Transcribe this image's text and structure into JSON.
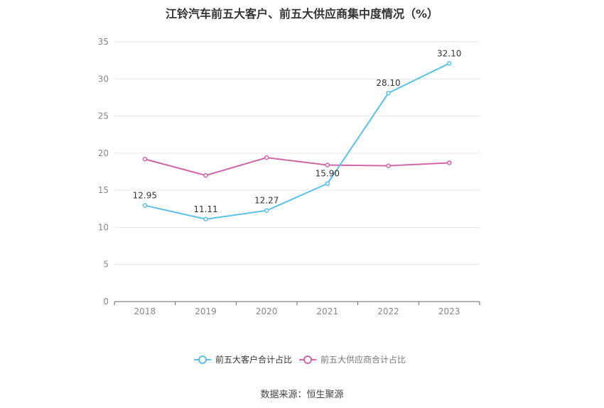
{
  "chart_data": {
    "type": "line",
    "title": "江铃汽车前五大客户、前五大供应商集中度情况（%）",
    "categories": [
      "2018",
      "2019",
      "2020",
      "2021",
      "2022",
      "2023"
    ],
    "ylim": [
      0,
      35
    ],
    "yticks": [
      0,
      5,
      10,
      15,
      20,
      25,
      30,
      35
    ],
    "grid": true,
    "legend_position": "bottom",
    "series": [
      {
        "name": "前五大客户合计占比",
        "color": "#5bc0eb",
        "values": [
          12.95,
          11.11,
          12.27,
          15.9,
          28.1,
          32.1
        ],
        "labels": [
          "12.95",
          "11.11",
          "12.27",
          "15.90",
          "28.10",
          "32.10"
        ]
      },
      {
        "name": "前五大供应商合计占比",
        "color": "#d066a8",
        "values": [
          19.2,
          17.0,
          19.4,
          18.4,
          18.3,
          18.7
        ]
      }
    ]
  },
  "source": "数据来源：恒生聚源"
}
